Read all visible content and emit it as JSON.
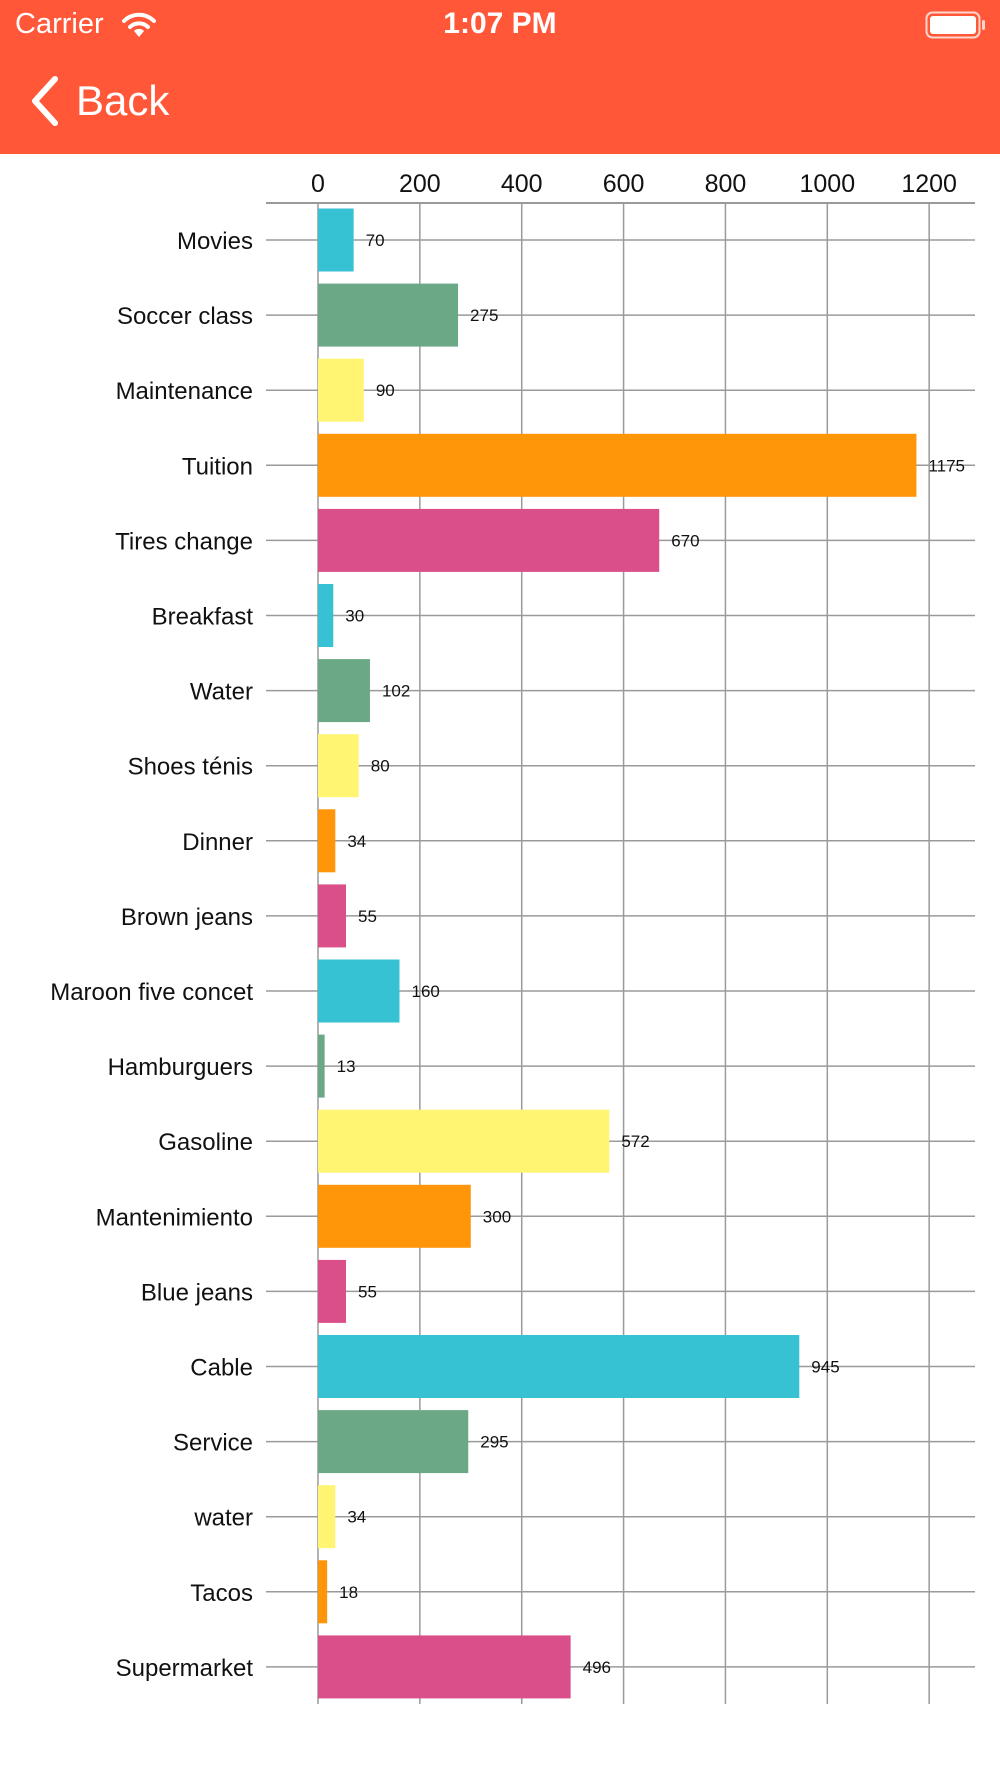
{
  "status_bar": {
    "carrier": "Carrier",
    "time": "1:07 PM",
    "icons": [
      "wifi-icon",
      "battery-icon"
    ]
  },
  "nav": {
    "back_label": "Back",
    "back_icon": "chevron-left-icon"
  },
  "colors": {
    "nav_background": "#FF5738",
    "series_palette": [
      "#37C2D3",
      "#6BA886",
      "#FFF573",
      "#FF9509",
      "#DA4F8A"
    ]
  },
  "chart_data": {
    "type": "bar",
    "orientation": "horizontal",
    "categories": [
      "Movies",
      "Soccer class",
      "Maintenance",
      "Tuition",
      "Tires change",
      "Breakfast",
      "Water",
      "Shoes ténis",
      "Dinner",
      "Brown jeans",
      "Maroon five concet",
      "Hamburguers",
      "Gasoline",
      "Mantenimiento",
      "Blue jeans",
      "Cable",
      "Service",
      "water",
      "Tacos",
      "Supermarket"
    ],
    "values": [
      70,
      275,
      90,
      1175,
      670,
      30,
      102,
      80,
      34,
      55,
      160,
      13,
      572,
      300,
      55,
      945,
      295,
      34,
      18,
      496
    ],
    "bar_colors": [
      "#37C2D3",
      "#6BA886",
      "#FFF573",
      "#FF9509",
      "#DA4F8A",
      "#37C2D3",
      "#6BA886",
      "#FFF573",
      "#FF9509",
      "#DA4F8A",
      "#37C2D3",
      "#6BA886",
      "#FFF573",
      "#FF9509",
      "#DA4F8A",
      "#37C2D3",
      "#6BA886",
      "#FFF573",
      "#FF9509",
      "#DA4F8A"
    ],
    "x_ticks": [
      0,
      200,
      400,
      600,
      800,
      1000,
      1200
    ],
    "xlim": [
      0,
      1290
    ],
    "xaxis_position": "top",
    "grid": true,
    "data_labels": true,
    "legend": false,
    "title": "",
    "xlabel": "",
    "ylabel": ""
  }
}
